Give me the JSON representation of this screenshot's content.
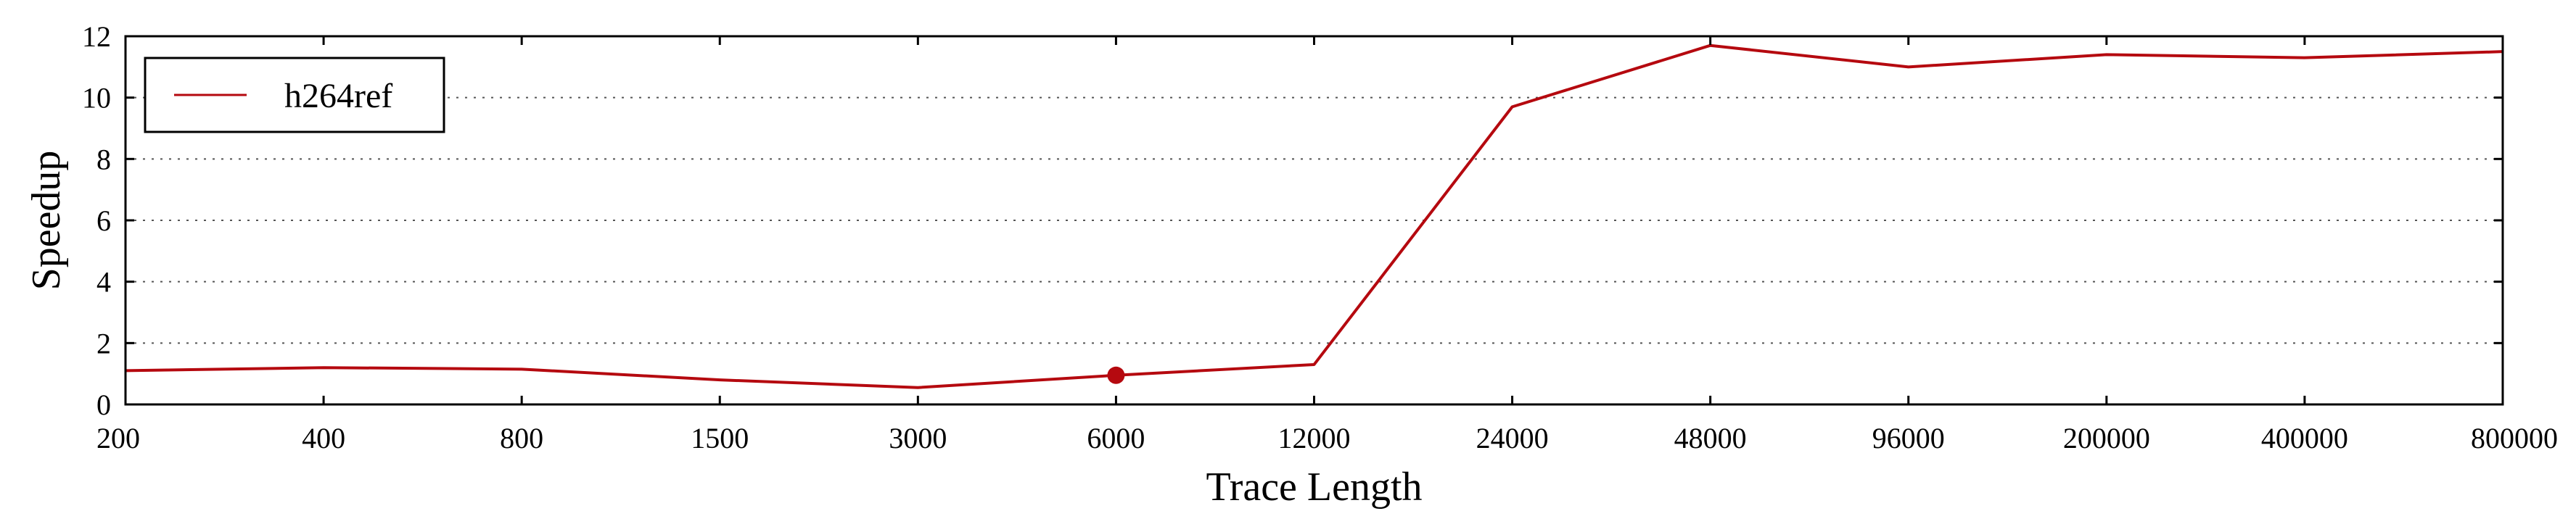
{
  "chart_data": {
    "type": "line",
    "title": "",
    "xlabel": "Trace Length",
    "ylabel": "Speedup",
    "categories": [
      "200",
      "400",
      "800",
      "1500",
      "3000",
      "6000",
      "12000",
      "24000",
      "48000",
      "96000",
      "200000",
      "400000",
      "800000"
    ],
    "series": [
      {
        "name": "h264ref",
        "color": "#b5090f",
        "values": [
          1.1,
          1.2,
          1.15,
          0.8,
          0.55,
          0.95,
          1.3,
          9.7,
          11.7,
          11.0,
          11.4,
          11.3,
          11.5
        ],
        "highlight_index": 5
      }
    ],
    "ylim": [
      0,
      12
    ],
    "yticks": [
      0,
      2,
      4,
      6,
      8,
      10,
      12
    ],
    "grid": "horizontal-dotted",
    "legend_position": "top-left"
  }
}
